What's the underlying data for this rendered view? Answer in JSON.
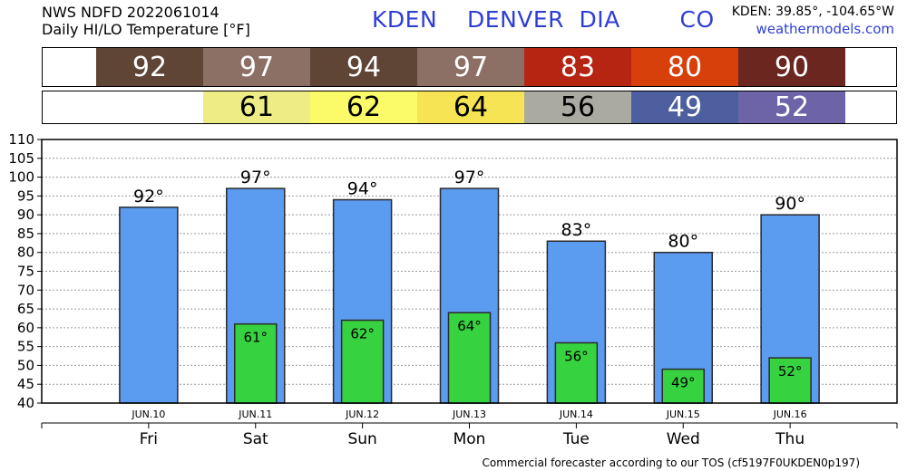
{
  "header": {
    "line1": "NWS NDFD 2022061014",
    "line2": "Daily HI/LO Temperature [°F]",
    "station": "KDEN  DENVER DIA    CO",
    "coords": "KDEN: 39.85°, -104.65°W",
    "site": "weathermodels.com"
  },
  "footer": "Commercial forecaster according to our TOS (cf5197F0UKDEN0p197)",
  "hi_strip": [
    {
      "value": "92",
      "color": "#5e4535",
      "text": "#ffffff"
    },
    {
      "value": "97",
      "color": "#8d7065",
      "text": "#ffffff"
    },
    {
      "value": "94",
      "color": "#5e4535",
      "text": "#ffffff"
    },
    {
      "value": "97",
      "color": "#8d7065",
      "text": "#ffffff"
    },
    {
      "value": "83",
      "color": "#b62412",
      "text": "#ffffff"
    },
    {
      "value": "80",
      "color": "#d8400b",
      "text": "#ffffff"
    },
    {
      "value": "90",
      "color": "#6b2620",
      "text": "#ffffff"
    }
  ],
  "lo_strip": [
    {
      "value": "",
      "color": "#ffffff",
      "text": "#000000"
    },
    {
      "value": "61",
      "color": "#edec85",
      "text": "#000000"
    },
    {
      "value": "62",
      "color": "#fbfa68",
      "text": "#000000"
    },
    {
      "value": "64",
      "color": "#f6e454",
      "text": "#000000"
    },
    {
      "value": "56",
      "color": "#abaaa2",
      "text": "#000000"
    },
    {
      "value": "49",
      "color": "#4d5f9f",
      "text": "#ffffff"
    },
    {
      "value": "52",
      "color": "#6c64a7",
      "text": "#ffffff"
    }
  ],
  "chart_data": {
    "type": "bar",
    "categories": [
      "Fri",
      "Sat",
      "Sun",
      "Mon",
      "Tue",
      "Wed",
      "Thu"
    ],
    "dates": [
      "JUN.10",
      "JUN.11",
      "JUN.12",
      "JUN.13",
      "JUN.14",
      "JUN.15",
      "JUN.16"
    ],
    "series": [
      {
        "values": [
          92,
          97,
          94,
          97,
          83,
          80,
          90
        ],
        "color": "#5b9bf0"
      },
      {
        "values": [
          null,
          61,
          62,
          64,
          56,
          49,
          52
        ],
        "color": "#37d23f"
      }
    ],
    "hi_labels": [
      "92°",
      "97°",
      "94°",
      "97°",
      "83°",
      "80°",
      "90°"
    ],
    "lo_labels": [
      "",
      "61°",
      "62°",
      "64°",
      "56°",
      "49°",
      "52°"
    ],
    "ylim": [
      40,
      110
    ],
    "yticks": [
      40,
      45,
      50,
      55,
      60,
      65,
      70,
      75,
      80,
      85,
      90,
      95,
      100,
      105,
      110
    ],
    "grid": true
  }
}
